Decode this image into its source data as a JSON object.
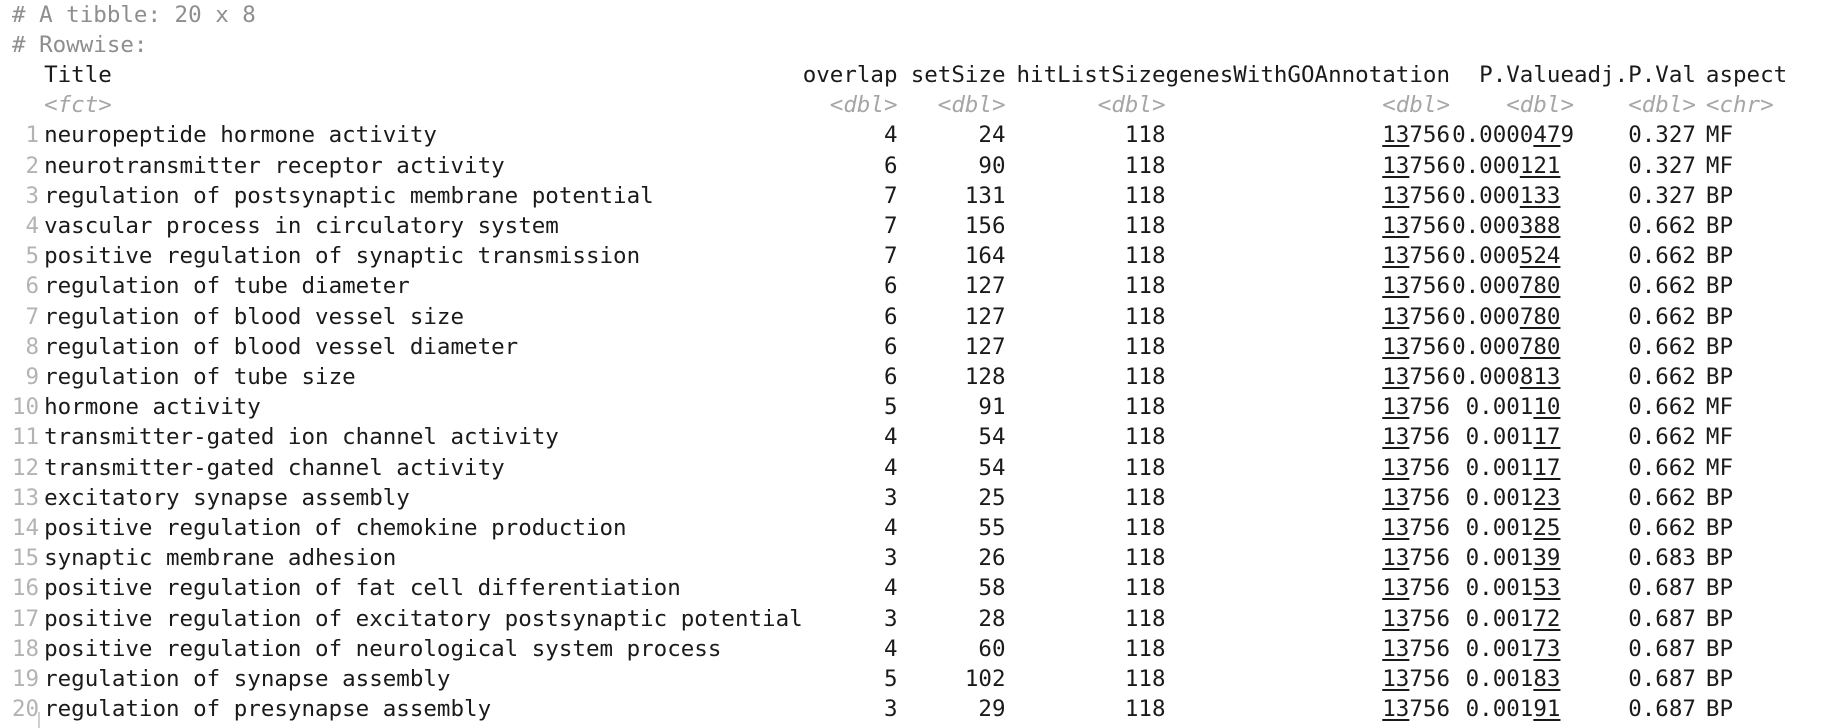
{
  "console": {
    "line1": "# A tibble: 20 x 8",
    "line2": "# Rowwise:"
  },
  "columns": [
    {
      "name": "Title",
      "type": "<fct>"
    },
    {
      "name": "overlap",
      "type": "<dbl>"
    },
    {
      "name": "setSize",
      "type": "<dbl>"
    },
    {
      "name": "hitListSize",
      "type": "<dbl>"
    },
    {
      "name": "genesWithGOAnnotation",
      "type": "<dbl>"
    },
    {
      "name": "P.Value",
      "type": "<dbl>"
    },
    {
      "name": "adj.P.Val",
      "type": "<dbl>"
    },
    {
      "name": "aspect",
      "type": "<chr>"
    }
  ],
  "rows": [
    {
      "n": "1",
      "title": "neuropeptide hormone activity",
      "overlap": "4",
      "setSize": "24",
      "hitListSize": "118",
      "genes_hi": "13",
      "genes_lo": "756",
      "p_hi": "0.0000",
      "p_ul": "47",
      "p_tail": "9",
      "adj": "0.327",
      "aspect": "MF"
    },
    {
      "n": "2",
      "title": "neurotransmitter receptor activity",
      "overlap": "6",
      "setSize": "90",
      "hitListSize": "118",
      "genes_hi": "13",
      "genes_lo": "756",
      "p_hi": "0.000",
      "p_ul": "121",
      "p_tail": "",
      "adj": "0.327",
      "aspect": "MF"
    },
    {
      "n": "3",
      "title": "regulation of postsynaptic membrane potential",
      "overlap": "7",
      "setSize": "131",
      "hitListSize": "118",
      "genes_hi": "13",
      "genes_lo": "756",
      "p_hi": "0.000",
      "p_ul": "133",
      "p_tail": "",
      "adj": "0.327",
      "aspect": "BP"
    },
    {
      "n": "4",
      "title": "vascular process in circulatory system",
      "overlap": "7",
      "setSize": "156",
      "hitListSize": "118",
      "genes_hi": "13",
      "genes_lo": "756",
      "p_hi": "0.000",
      "p_ul": "388",
      "p_tail": "",
      "adj": "0.662",
      "aspect": "BP"
    },
    {
      "n": "5",
      "title": "positive regulation of synaptic transmission",
      "overlap": "7",
      "setSize": "164",
      "hitListSize": "118",
      "genes_hi": "13",
      "genes_lo": "756",
      "p_hi": "0.000",
      "p_ul": "524",
      "p_tail": "",
      "adj": "0.662",
      "aspect": "BP"
    },
    {
      "n": "6",
      "title": "regulation of tube diameter",
      "overlap": "6",
      "setSize": "127",
      "hitListSize": "118",
      "genes_hi": "13",
      "genes_lo": "756",
      "p_hi": "0.000",
      "p_ul": "780",
      "p_tail": "",
      "adj": "0.662",
      "aspect": "BP"
    },
    {
      "n": "7",
      "title": "regulation of blood vessel size",
      "overlap": "6",
      "setSize": "127",
      "hitListSize": "118",
      "genes_hi": "13",
      "genes_lo": "756",
      "p_hi": "0.000",
      "p_ul": "780",
      "p_tail": "",
      "adj": "0.662",
      "aspect": "BP"
    },
    {
      "n": "8",
      "title": "regulation of blood vessel diameter",
      "overlap": "6",
      "setSize": "127",
      "hitListSize": "118",
      "genes_hi": "13",
      "genes_lo": "756",
      "p_hi": "0.000",
      "p_ul": "780",
      "p_tail": "",
      "adj": "0.662",
      "aspect": "BP"
    },
    {
      "n": "9",
      "title": "regulation of tube size",
      "overlap": "6",
      "setSize": "128",
      "hitListSize": "118",
      "genes_hi": "13",
      "genes_lo": "756",
      "p_hi": "0.000",
      "p_ul": "813",
      "p_tail": "",
      "adj": "0.662",
      "aspect": "BP"
    },
    {
      "n": "10",
      "title": "hormone activity",
      "overlap": "5",
      "setSize": "91",
      "hitListSize": "118",
      "genes_hi": "13",
      "genes_lo": "756",
      "p_hi": "0.001",
      "p_ul": "10",
      "p_tail": "",
      "adj": "0.662",
      "aspect": "MF"
    },
    {
      "n": "11",
      "title": "transmitter-gated ion channel activity",
      "overlap": "4",
      "setSize": "54",
      "hitListSize": "118",
      "genes_hi": "13",
      "genes_lo": "756",
      "p_hi": "0.001",
      "p_ul": "17",
      "p_tail": "",
      "adj": "0.662",
      "aspect": "MF"
    },
    {
      "n": "12",
      "title": "transmitter-gated channel activity",
      "overlap": "4",
      "setSize": "54",
      "hitListSize": "118",
      "genes_hi": "13",
      "genes_lo": "756",
      "p_hi": "0.001",
      "p_ul": "17",
      "p_tail": "",
      "adj": "0.662",
      "aspect": "MF"
    },
    {
      "n": "13",
      "title": "excitatory synapse assembly",
      "overlap": "3",
      "setSize": "25",
      "hitListSize": "118",
      "genes_hi": "13",
      "genes_lo": "756",
      "p_hi": "0.001",
      "p_ul": "23",
      "p_tail": "",
      "adj": "0.662",
      "aspect": "BP"
    },
    {
      "n": "14",
      "title": "positive regulation of chemokine production",
      "overlap": "4",
      "setSize": "55",
      "hitListSize": "118",
      "genes_hi": "13",
      "genes_lo": "756",
      "p_hi": "0.001",
      "p_ul": "25",
      "p_tail": "",
      "adj": "0.662",
      "aspect": "BP"
    },
    {
      "n": "15",
      "title": "synaptic membrane adhesion",
      "overlap": "3",
      "setSize": "26",
      "hitListSize": "118",
      "genes_hi": "13",
      "genes_lo": "756",
      "p_hi": "0.001",
      "p_ul": "39",
      "p_tail": "",
      "adj": "0.683",
      "aspect": "BP"
    },
    {
      "n": "16",
      "title": "positive regulation of fat cell differentiation",
      "overlap": "4",
      "setSize": "58",
      "hitListSize": "118",
      "genes_hi": "13",
      "genes_lo": "756",
      "p_hi": "0.001",
      "p_ul": "53",
      "p_tail": "",
      "adj": "0.687",
      "aspect": "BP"
    },
    {
      "n": "17",
      "title": "positive regulation of excitatory postsynaptic potential",
      "overlap": "3",
      "setSize": "28",
      "hitListSize": "118",
      "genes_hi": "13",
      "genes_lo": "756",
      "p_hi": "0.001",
      "p_ul": "72",
      "p_tail": "",
      "adj": "0.687",
      "aspect": "BP"
    },
    {
      "n": "18",
      "title": "positive regulation of neurological system process",
      "overlap": "4",
      "setSize": "60",
      "hitListSize": "118",
      "genes_hi": "13",
      "genes_lo": "756",
      "p_hi": "0.001",
      "p_ul": "73",
      "p_tail": "",
      "adj": "0.687",
      "aspect": "BP"
    },
    {
      "n": "19",
      "title": "regulation of synapse assembly",
      "overlap": "5",
      "setSize": "102",
      "hitListSize": "118",
      "genes_hi": "13",
      "genes_lo": "756",
      "p_hi": "0.001",
      "p_ul": "83",
      "p_tail": "",
      "adj": "0.687",
      "aspect": "BP"
    },
    {
      "n": "20",
      "title": "regulation of presynapse assembly",
      "overlap": "3",
      "setSize": "29",
      "hitListSize": "118",
      "genes_hi": "13",
      "genes_lo": "756",
      "p_hi": "0.001",
      "p_ul": "91",
      "p_tail": "",
      "adj": "0.687",
      "aspect": "BP"
    }
  ]
}
